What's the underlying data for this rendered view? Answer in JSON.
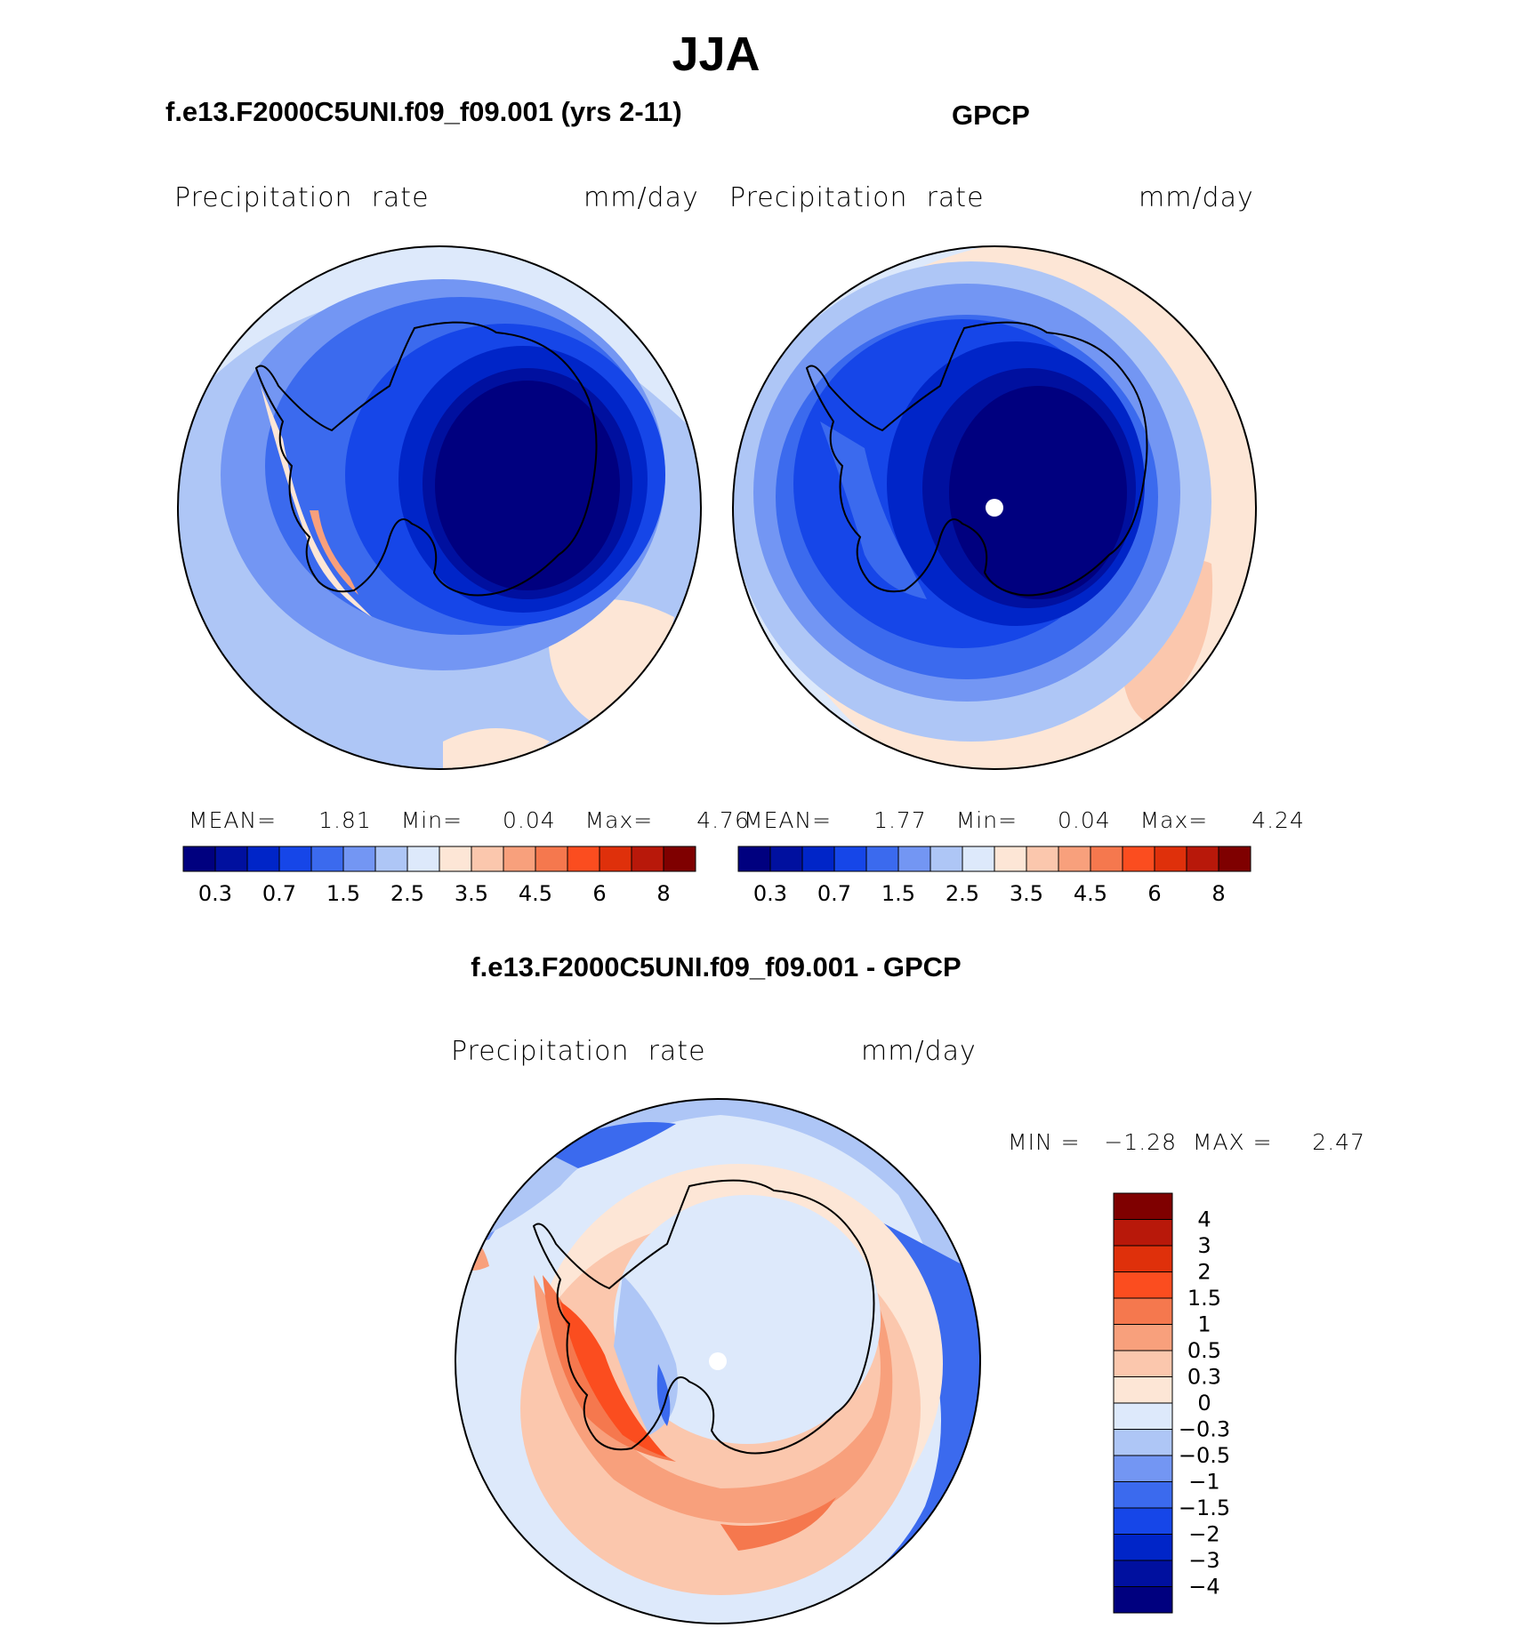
{
  "page": {
    "season_title": "JJA",
    "panel_model_title": "f.e13.F2000C5UNI.f09_f09.001 (yrs 2-11)",
    "panel_obs_title": "GPCP",
    "panel_diff_title": "f.e13.F2000C5UNI.f09_f09.001 - GPCP"
  },
  "panels": [
    {
      "id": "model",
      "variable_label": "Precipitation  rate",
      "units_label": "mm/day",
      "stats": {
        "mean_label": "MEAN=",
        "mean": "1.81",
        "min_label": "Min=",
        "min": "0.04",
        "max_label": "Max=",
        "max": "4.76"
      }
    },
    {
      "id": "obs",
      "variable_label": "Precipitation  rate",
      "units_label": "mm/day",
      "stats": {
        "mean_label": "MEAN=",
        "mean": "1.77",
        "min_label": "Min=",
        "min": "0.04",
        "max_label": "Max=",
        "max": "4.24"
      }
    },
    {
      "id": "diff",
      "variable_label": "Precipitation  rate",
      "units_label": "mm/day",
      "stats_text": "MIN =   −1.28  MAX =     2.47"
    }
  ],
  "abs_colorbar": {
    "colors": [
      "#00007f",
      "#00109f",
      "#0025c8",
      "#1646e8",
      "#3b6aee",
      "#7396f3",
      "#aec6f6",
      "#dde9fb",
      "#fde6d6",
      "#fbc7ad",
      "#f8a07c",
      "#f5784e",
      "#fb4d1f",
      "#df300b",
      "#b8180a",
      "#7f0000"
    ],
    "tick_labels": [
      "0.3",
      "0.7",
      "1.5",
      "2.5",
      "3.5",
      "4.5",
      "6",
      "8"
    ]
  },
  "diff_colorbar": {
    "colors_top_to_bottom": [
      "#7f0000",
      "#b8180a",
      "#df300b",
      "#fb4d1f",
      "#f5784e",
      "#f8a07c",
      "#fbc7ad",
      "#fde6d6",
      "#dde9fb",
      "#aec6f6",
      "#7396f3",
      "#3b6aee",
      "#1646e8",
      "#0025c8",
      "#00109f",
      "#00007f"
    ],
    "tick_labels": [
      "4",
      "3",
      "2",
      "1.5",
      "1",
      "0.5",
      "0.3",
      "0",
      "−0.3",
      "−0.5",
      "−1",
      "−1.5",
      "−2",
      "−3",
      "−4"
    ]
  },
  "icons": [
    "south-pole-marker-icon"
  ]
}
